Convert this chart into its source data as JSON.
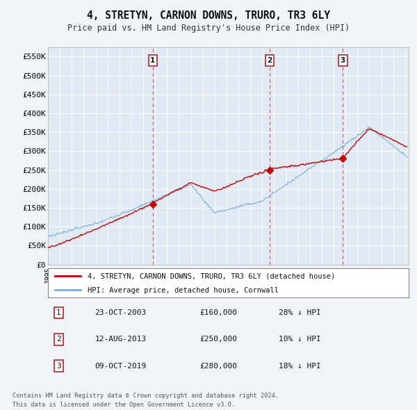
{
  "title": "4, STRETYN, CARNON DOWNS, TRURO, TR3 6LY",
  "subtitle": "Price paid vs. HM Land Registry's House Price Index (HPI)",
  "ylabel_ticks": [
    "£0",
    "£50K",
    "£100K",
    "£150K",
    "£200K",
    "£250K",
    "£300K",
    "£350K",
    "£400K",
    "£450K",
    "£500K",
    "£550K"
  ],
  "ytick_values": [
    0,
    50000,
    100000,
    150000,
    200000,
    250000,
    300000,
    350000,
    400000,
    450000,
    500000,
    550000
  ],
  "ylim": [
    0,
    575000
  ],
  "xlim_start": 1995.0,
  "xlim_end": 2025.3,
  "background_color": "#f0f4f8",
  "plot_bg_color": "#e0eaf5",
  "sale_dates": [
    2003.81,
    2013.62,
    2019.77
  ],
  "sale_prices": [
    160000,
    250000,
    280000
  ],
  "sale_labels": [
    "1",
    "2",
    "3"
  ],
  "sale_info": [
    {
      "num": "1",
      "date": "23-OCT-2003",
      "price": "£160,000",
      "hpi": "28% ↓ HPI"
    },
    {
      "num": "2",
      "date": "12-AUG-2013",
      "price": "£250,000",
      "hpi": "10% ↓ HPI"
    },
    {
      "num": "3",
      "date": "09-OCT-2019",
      "price": "£280,000",
      "hpi": "18% ↓ HPI"
    }
  ],
  "legend_property": "4, STRETYN, CARNON DOWNS, TRURO, TR3 6LY (detached house)",
  "legend_hpi": "HPI: Average price, detached house, Cornwall",
  "footer": "Contains HM Land Registry data © Crown copyright and database right 2024.\nThis data is licensed under the Open Government Licence v3.0.",
  "red_color": "#cc0000",
  "blue_color": "#7aaddb",
  "dashed_color": "#dd4444"
}
